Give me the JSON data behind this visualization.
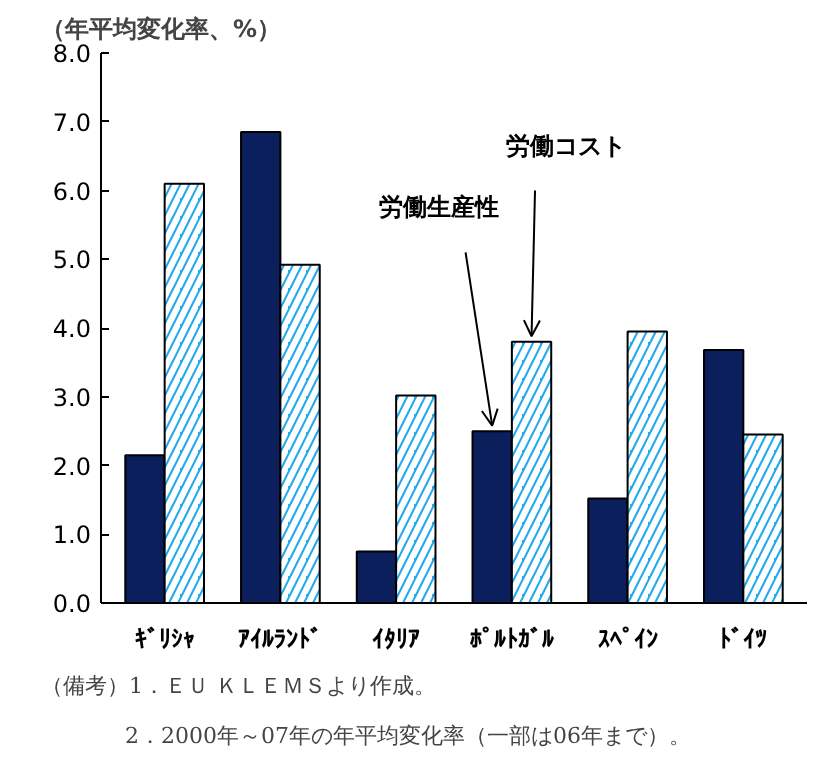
{
  "chart_data": {
    "type": "bar",
    "ylabel": "（年平均変化率、%）",
    "categories": [
      "ｷﾞﾘｼｬ",
      "ｱｲﾙﾗﾝﾄﾞ",
      "ｲﾀﾘｱ",
      "ﾎﾟﾙﾄｶﾞﾙ",
      "ｽﾍﾟｲﾝ",
      "ﾄﾞｲﾂ"
    ],
    "series": [
      {
        "name": "労働生産性",
        "color": "#0a1f5c",
        "values": [
          2.15,
          6.85,
          0.75,
          2.5,
          1.52,
          3.68
        ]
      },
      {
        "name": "労働コスト",
        "color": "#22aaee",
        "values": [
          6.1,
          4.92,
          3.02,
          3.8,
          3.95,
          2.45
        ]
      }
    ],
    "ylim": [
      0,
      8
    ],
    "yticks": [
      {
        "value": 0,
        "label": "0.0"
      },
      {
        "value": 1,
        "label": "1.0"
      },
      {
        "value": 2,
        "label": "2.0"
      },
      {
        "value": 3,
        "label": "3.0"
      },
      {
        "value": 4,
        "label": "4.0"
      },
      {
        "value": 5,
        "label": "5.0"
      },
      {
        "value": 6,
        "label": "6.0"
      },
      {
        "value": 7,
        "label": "7.0"
      },
      {
        "value": 8,
        "label": "8.0"
      }
    ],
    "grid": false,
    "legend": false,
    "annotations": [
      "（備考）1．ＥＵ ＫＬＥＭＳより作成。",
      "2．2000年～07年の年平均変化率（一部は06年まで）。"
    ]
  }
}
